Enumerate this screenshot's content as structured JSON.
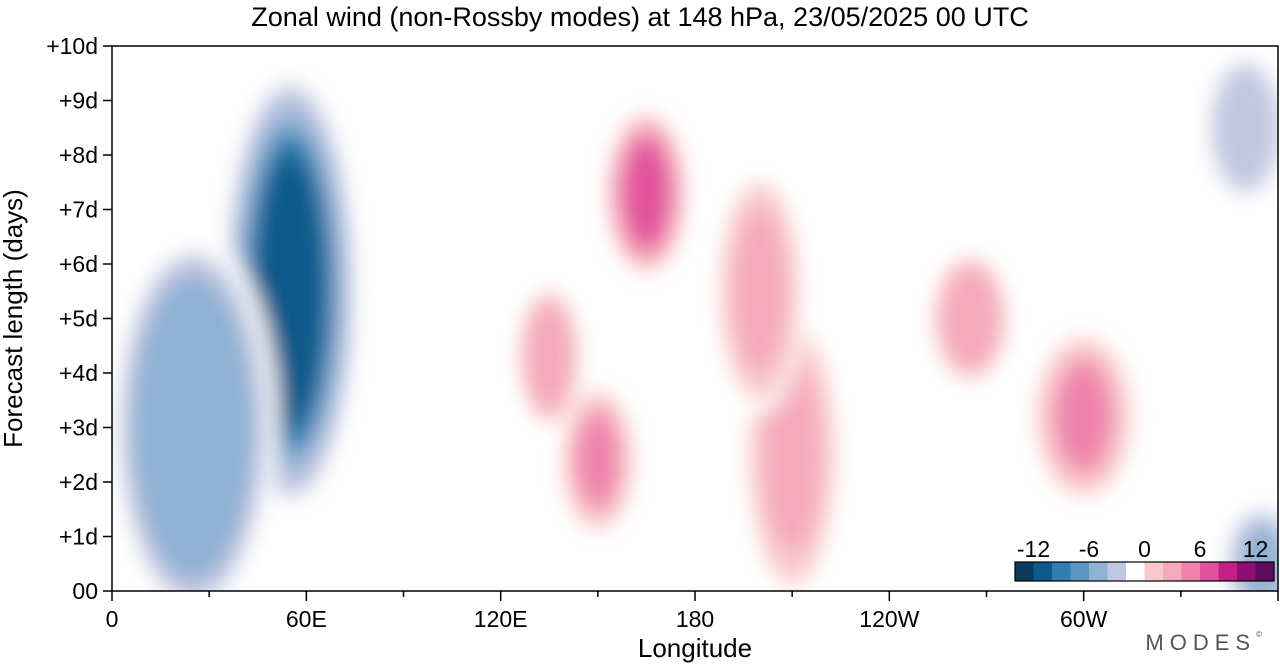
{
  "title": "Zonal wind (non-Rossby modes) at 148 hPa,  23/05/2025  00 UTC",
  "watermark": "MODES",
  "watermark_mark": "©",
  "chart_data": {
    "type": "heatmap",
    "title": "Zonal wind (non-Rossby modes) at 148 hPa,  23/05/2025  00 UTC",
    "xlabel": "Longitude",
    "ylabel": "Forecast length (days)",
    "x_ticks": [
      "0",
      "60E",
      "120E",
      "180",
      "120W",
      "60W"
    ],
    "x_tick_values": [
      0,
      60,
      120,
      180,
      240,
      300
    ],
    "xlim": [
      0,
      360
    ],
    "y_ticks": [
      "00",
      "+1d",
      "+2d",
      "+3d",
      "+4d",
      "+5d",
      "+6d",
      "+7d",
      "+8d",
      "+9d",
      "+10d"
    ],
    "ylim": [
      0,
      10
    ],
    "colorbar": {
      "tick_labels": [
        "-12",
        "-6",
        "0",
        "6",
        "12"
      ],
      "levels": [
        -14,
        -12,
        -10,
        -8,
        -6,
        -4,
        -2,
        2,
        4,
        6,
        8,
        10,
        12,
        14
      ],
      "colors": [
        "#0b3a5a",
        "#0e5a8a",
        "#2f7fb3",
        "#5b97c3",
        "#8fb1d3",
        "#c2c7e1",
        "#ffffff",
        "#f9c9c9",
        "#f4a9bd",
        "#ee82ac",
        "#e2519c",
        "#c61f88",
        "#8d0f73",
        "#5e0b62"
      ],
      "placement": "bottom-right"
    },
    "features": [
      {
        "lon": 55,
        "day": 5.5,
        "value": -13,
        "width": 16,
        "height": 4.2
      },
      {
        "lon": 25,
        "day": 3.0,
        "value": -7,
        "width": 22,
        "height": 4.0
      },
      {
        "lon": 165,
        "day": 7.3,
        "value": 11,
        "width": 10,
        "height": 1.6
      },
      {
        "lon": 150,
        "day": 2.4,
        "value": 9,
        "width": 9,
        "height": 1.4
      },
      {
        "lon": 135,
        "day": 4.3,
        "value": 7,
        "width": 9,
        "height": 1.5
      },
      {
        "lon": 300,
        "day": 3.2,
        "value": 8,
        "width": 12,
        "height": 1.6
      },
      {
        "lon": 265,
        "day": 5.0,
        "value": 7,
        "width": 11,
        "height": 1.4
      },
      {
        "lon": 210,
        "day": 2.5,
        "value": 6,
        "width": 13,
        "height": 3.0
      },
      {
        "lon": 200,
        "day": 5.5,
        "value": 6,
        "width": 12,
        "height": 2.5
      },
      {
        "lon": 350,
        "day": 8.5,
        "value": -3,
        "width": 16,
        "height": 2.0
      },
      {
        "lon": 355,
        "day": 0.5,
        "value": -6,
        "width": 10,
        "height": 1.2
      }
    ]
  }
}
